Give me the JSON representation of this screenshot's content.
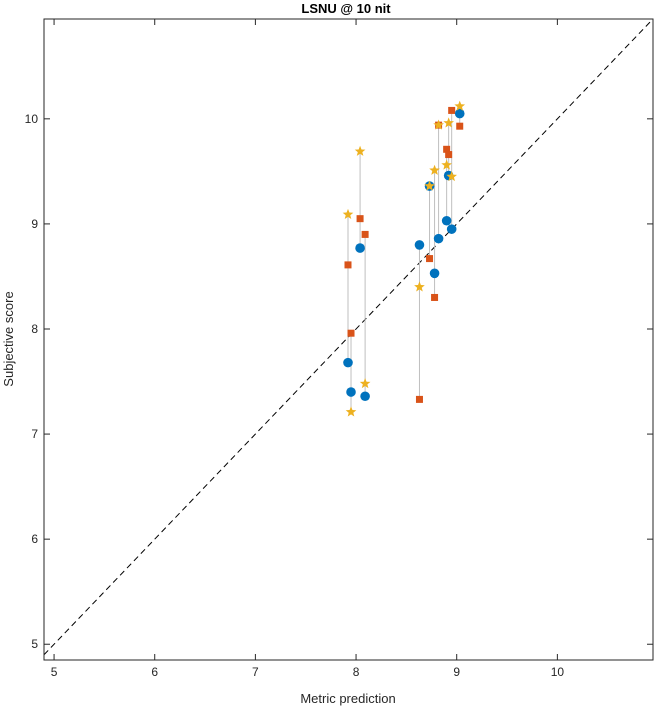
{
  "chart_data": {
    "type": "scatter",
    "title": "LSNU @ 10 nit",
    "xlabel": "Metric prediction",
    "ylabel": "Subjective score",
    "xlim": [
      4.9,
      10.95
    ],
    "ylim": [
      4.85,
      10.95
    ],
    "xticks": [
      5,
      6,
      7,
      8,
      9,
      10
    ],
    "yticks": [
      5,
      6,
      7,
      8,
      9,
      10
    ],
    "grid": false,
    "diagonal": "dashed y = x",
    "colors": {
      "blue": "#0072BD",
      "orange": "#D95319",
      "yellow": "#EDB120",
      "connector": "#bfbfbf",
      "diagonal": "#000000"
    },
    "groups": [
      {
        "x": 7.92,
        "blue": 7.68,
        "orange": 8.61,
        "yellow": 9.09
      },
      {
        "x": 7.95,
        "blue": 7.4,
        "orange": 7.96,
        "yellow": 7.21
      },
      {
        "x": 8.04,
        "blue": 8.77,
        "orange": 9.05,
        "yellow": 9.69
      },
      {
        "x": 8.09,
        "blue": 7.36,
        "orange": 8.9,
        "yellow": 7.48
      },
      {
        "x": 8.63,
        "blue": 8.8,
        "orange": 7.33,
        "yellow": 8.4
      },
      {
        "x": 8.73,
        "blue": 9.36,
        "orange": 8.67,
        "yellow": 9.36
      },
      {
        "x": 8.78,
        "blue": 8.53,
        "orange": 8.3,
        "yellow": 9.51
      },
      {
        "x": 8.82,
        "blue": 8.86,
        "orange": 9.94,
        "yellow": 9.94
      },
      {
        "x": 8.9,
        "blue": 9.03,
        "orange": 9.71,
        "yellow": 9.56
      },
      {
        "x": 8.92,
        "blue": 9.46,
        "orange": 9.66,
        "yellow": 9.96
      },
      {
        "x": 8.95,
        "blue": 8.95,
        "orange": 10.08,
        "yellow": 9.45
      },
      {
        "x": 9.03,
        "blue": 10.05,
        "orange": 9.93,
        "yellow": 10.12
      }
    ]
  }
}
